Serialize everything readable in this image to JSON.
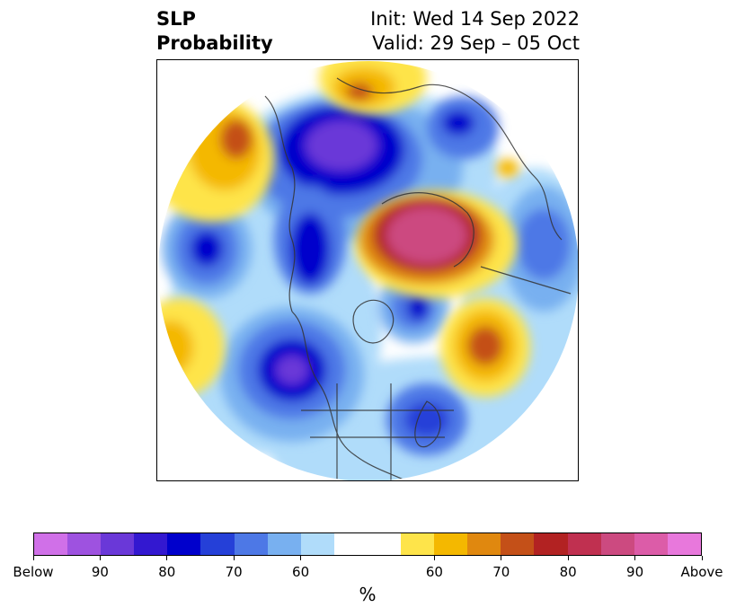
{
  "title": {
    "left_line1": "SLP",
    "left_line2": "Probability",
    "right_line1": "Init: Wed 14 Sep 2022",
    "right_line2": "Valid: 29 Sep – 05 Oct"
  },
  "colorbar": {
    "label": "%",
    "colors": [
      "#d070e8",
      "#9e52e0",
      "#6a38d8",
      "#3318d0",
      "#0000cc",
      "#2540d8",
      "#4d78e6",
      "#78b0f0",
      "#b0dcfa",
      "#ffffff",
      "#ffffff",
      "#fee44a",
      "#f4b800",
      "#e0880f",
      "#c45018",
      "#b22222",
      "#c03050",
      "#cc4a80",
      "#dc5ca8",
      "#e878dc"
    ],
    "ticks": [
      "Below",
      "90",
      "80",
      "70",
      "60",
      "60",
      "70",
      "80",
      "90",
      "Above"
    ],
    "tick_index": [
      0,
      2,
      4,
      6,
      8,
      12,
      14,
      16,
      18,
      20
    ]
  },
  "map": {
    "regions": [
      {
        "name": "below-north-atlantic",
        "color": "#6a38d8"
      },
      {
        "name": "below-pacific",
        "color": "#3318d0"
      },
      {
        "name": "below-europe",
        "color": "#2540d8"
      },
      {
        "name": "above-siberia",
        "color": "#cc4a80"
      },
      {
        "name": "above-north-pacific",
        "color": "#c45018"
      },
      {
        "name": "above-atlantic-ne",
        "color": "#f4b800"
      }
    ]
  }
}
